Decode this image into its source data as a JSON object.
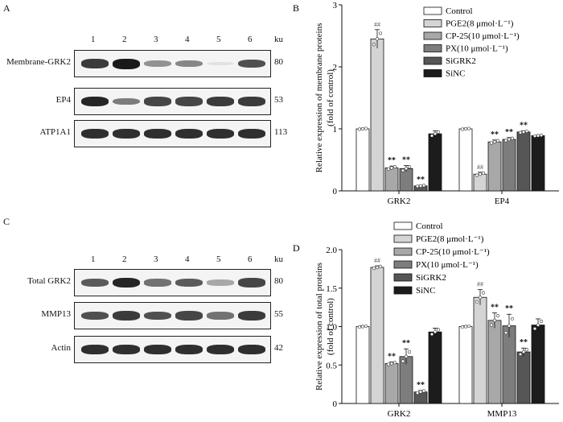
{
  "panel_a": {
    "letter": "A",
    "lanes": [
      "1",
      "2",
      "3",
      "4",
      "5",
      "6"
    ],
    "unit": "ku",
    "rows": [
      {
        "label": "Membrane-GRK2",
        "ku": "80",
        "intensity": [
          0.85,
          1.0,
          0.45,
          0.5,
          0.05,
          0.75
        ]
      },
      {
        "label": "EP4",
        "ku": "53",
        "intensity": [
          0.95,
          0.55,
          0.8,
          0.8,
          0.85,
          0.85
        ]
      },
      {
        "label": "ATP1A1",
        "ku": "113",
        "intensity": [
          0.9,
          0.9,
          0.9,
          0.9,
          0.9,
          0.9
        ]
      }
    ]
  },
  "panel_c": {
    "letter": "C",
    "lanes": [
      "1",
      "2",
      "3",
      "4",
      "5",
      "6"
    ],
    "unit": "ku",
    "rows": [
      {
        "label": "Total GRK2",
        "ku": "80",
        "intensity": [
          0.7,
          0.95,
          0.6,
          0.7,
          0.35,
          0.8
        ]
      },
      {
        "label": "MMP13",
        "ku": "55",
        "intensity": [
          0.75,
          0.85,
          0.75,
          0.8,
          0.6,
          0.85
        ]
      },
      {
        "label": "Actin",
        "ku": "42",
        "intensity": [
          0.9,
          0.9,
          0.9,
          0.9,
          0.9,
          0.9
        ]
      }
    ]
  },
  "chart_data": [
    {
      "letter": "B",
      "type": "bar",
      "ylabel_line1": "Relative expression of membrane proteins",
      "ylabel_line2": "(fold of control)",
      "ylim": [
        0,
        3
      ],
      "yticks": [
        "0",
        "1",
        "2",
        "3"
      ],
      "categories": [
        "GRK2",
        "EP4"
      ],
      "series": [
        {
          "name": "Control",
          "color": "#ffffff",
          "values": [
            1.0,
            1.0
          ],
          "err": [
            0.01,
            0.01
          ],
          "sig": [
            "",
            ""
          ]
        },
        {
          "name": "PGE2(8 μmol·L⁻¹)",
          "color": "#d4d4d4",
          "values": [
            2.45,
            0.27
          ],
          "err": [
            0.15,
            0.03
          ],
          "sig": [
            "##",
            "##"
          ]
        },
        {
          "name": "CP-25(10 μmol·L⁻¹)",
          "color": "#a8a8a8",
          "values": [
            0.37,
            0.79
          ],
          "err": [
            0.03,
            0.03
          ],
          "sig": [
            "**",
            "**"
          ]
        },
        {
          "name": "PX(10 μmol·L⁻¹)",
          "color": "#7d7d7d",
          "values": [
            0.36,
            0.83
          ],
          "err": [
            0.05,
            0.03
          ],
          "sig": [
            "**",
            "**"
          ]
        },
        {
          "name": "SiGRK2",
          "color": "#565656",
          "values": [
            0.08,
            0.95
          ],
          "err": [
            0.01,
            0.02
          ],
          "sig": [
            "**",
            "**"
          ]
        },
        {
          "name": "SiNC",
          "color": "#1c1c1c",
          "values": [
            0.92,
            0.89
          ],
          "err": [
            0.05,
            0.01
          ],
          "sig": [
            "",
            ""
          ]
        }
      ]
    },
    {
      "letter": "D",
      "type": "bar",
      "ylabel_line1": "Relative expression of total proteins",
      "ylabel_line2": "(fold of control)",
      "ylim": [
        0,
        2.0
      ],
      "yticks": [
        "0",
        "0.5",
        "1.0",
        "1.5",
        "2.0"
      ],
      "categories": [
        "GRK2",
        "MMP13"
      ],
      "series": [
        {
          "name": "Control",
          "color": "#ffffff",
          "values": [
            1.0,
            1.0
          ],
          "err": [
            0.01,
            0.01
          ],
          "sig": [
            "",
            ""
          ]
        },
        {
          "name": "PGE2(8 μmol·L⁻¹)",
          "color": "#d4d4d4",
          "values": [
            1.77,
            1.38
          ],
          "err": [
            0.02,
            0.1
          ],
          "sig": [
            "##",
            "##"
          ]
        },
        {
          "name": "CP-25(10 μmol·L⁻¹)",
          "color": "#a8a8a8",
          "values": [
            0.52,
            1.08
          ],
          "err": [
            0.02,
            0.1
          ],
          "sig": [
            "**",
            "**"
          ]
        },
        {
          "name": "PX(10 μmol·L⁻¹)",
          "color": "#7d7d7d",
          "values": [
            0.61,
            1.01
          ],
          "err": [
            0.1,
            0.15
          ],
          "sig": [
            "**",
            "**"
          ]
        },
        {
          "name": "SiGRK2",
          "color": "#565656",
          "values": [
            0.15,
            0.67
          ],
          "err": [
            0.02,
            0.05
          ],
          "sig": [
            "**",
            "**"
          ]
        },
        {
          "name": "SiNC",
          "color": "#1c1c1c",
          "values": [
            0.93,
            1.02
          ],
          "err": [
            0.05,
            0.08
          ],
          "sig": [
            "",
            ""
          ]
        }
      ]
    }
  ]
}
